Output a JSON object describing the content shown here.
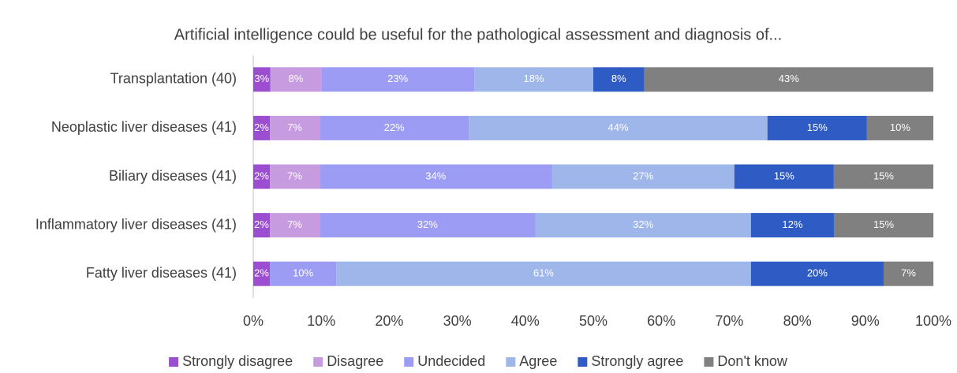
{
  "chart_data": {
    "type": "stacked_barh",
    "title": "Artificial intelligence could be useful for the pathological assessment and diagnosis of...",
    "categories": [
      "Transplantation (40)",
      "Neoplastic liver diseases (41)",
      "Biliary diseases (41)",
      "Inflammatory liver diseases (41)",
      "Fatty liver diseases (41)"
    ],
    "series": [
      {
        "name": "Strongly disagree",
        "color": "#9b4fd0",
        "values": [
          2.5,
          2.44,
          2.44,
          2.44,
          2.44
        ],
        "value_labels": [
          "3%",
          "2%",
          "2%",
          "2%",
          "2%"
        ]
      },
      {
        "name": "Disagree",
        "color": "#c79be0",
        "values": [
          7.5,
          7.32,
          7.32,
          7.32,
          0
        ],
        "value_labels": [
          "8%",
          "7%",
          "7%",
          "7%",
          null
        ]
      },
      {
        "name": "Undecided",
        "color": "#9c9cf4",
        "values": [
          22.5,
          21.95,
          34.15,
          31.71,
          9.76
        ],
        "value_labels": [
          "23%",
          "22%",
          "34%",
          "32%",
          "10%"
        ]
      },
      {
        "name": "Agree",
        "color": "#9fb6ea",
        "values": [
          17.5,
          43.9,
          26.83,
          31.71,
          60.98
        ],
        "value_labels": [
          "18%",
          "44%",
          "27%",
          "32%",
          "61%"
        ]
      },
      {
        "name": "Strongly agree",
        "color": "#2f5cc4",
        "values": [
          7.5,
          14.63,
          14.63,
          12.2,
          19.51
        ],
        "value_labels": [
          "8%",
          "15%",
          "15%",
          "12%",
          "20%"
        ]
      },
      {
        "name": "Don't know",
        "color": "#808080",
        "values": [
          42.5,
          9.76,
          14.63,
          14.63,
          7.32
        ],
        "value_labels": [
          "43%",
          "10%",
          "15%",
          "15%",
          "7%"
        ]
      }
    ],
    "xlim": [
      0,
      100
    ],
    "xticks": [
      {
        "value": 0,
        "label": "0%"
      },
      {
        "value": 10,
        "label": "10%"
      },
      {
        "value": 20,
        "label": "20%"
      },
      {
        "value": 30,
        "label": "30%"
      },
      {
        "value": 40,
        "label": "40%"
      },
      {
        "value": 50,
        "label": "50%"
      },
      {
        "value": 60,
        "label": "60%"
      },
      {
        "value": 70,
        "label": "70%"
      },
      {
        "value": 80,
        "label": "80%"
      },
      {
        "value": 90,
        "label": "90%"
      },
      {
        "value": 100,
        "label": "100%"
      }
    ],
    "legend": "bottom"
  }
}
